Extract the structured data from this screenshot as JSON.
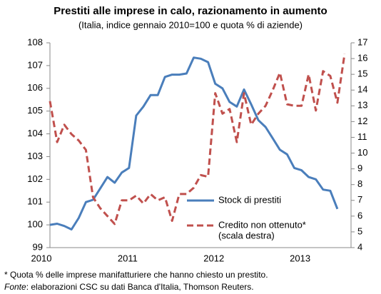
{
  "chart_data": {
    "type": "line",
    "title": "Prestiti alle imprese in calo, razionamento in aumento",
    "subtitle": "(Italia, indice gennaio 2010=100 e quota % di aziende)",
    "categories": [
      "2010",
      null,
      null,
      null,
      null,
      null,
      null,
      null,
      null,
      null,
      null,
      null,
      "2011",
      null,
      null,
      null,
      null,
      null,
      null,
      null,
      null,
      null,
      null,
      null,
      "2012",
      null,
      null,
      null,
      null,
      null,
      null,
      null,
      null,
      null,
      null,
      null,
      "2013",
      null,
      null,
      null,
      null,
      null
    ],
    "series": [
      {
        "name": "Stock di prestiti",
        "color": "#4a7ebb",
        "dash": false,
        "values": [
          100.0,
          100.05,
          99.95,
          99.8,
          100.3,
          101.0,
          101.1,
          101.6,
          102.1,
          101.85,
          102.3,
          102.5,
          104.8,
          105.2,
          105.7,
          105.7,
          106.5,
          106.6,
          106.6,
          106.65,
          107.35,
          107.3,
          107.15,
          106.2,
          106.0,
          105.4,
          105.2,
          105.95,
          105.3,
          104.6,
          104.3,
          103.8,
          103.3,
          103.1,
          102.5,
          102.4,
          102.1,
          102.0,
          101.55,
          101.5,
          100.7,
          null
        ]
      },
      {
        "name": "Credito non ottenuto*",
        "color": "#c0504d",
        "dash": true,
        "axis": "y2",
        "values": [
          13.3,
          10.7,
          11.8,
          11.2,
          10.8,
          10.2,
          7.2,
          6.5,
          6.0,
          5.5,
          7.0,
          7.0,
          7.3,
          6.8,
          7.4,
          7.0,
          7.2,
          5.7,
          7.4,
          7.4,
          7.8,
          8.6,
          8.5,
          13.8,
          12.5,
          12.8,
          10.7,
          13.8,
          11.8,
          12.5,
          13.0,
          14.0,
          15.1,
          13.1,
          13.0,
          13.0,
          15.0,
          12.7,
          15.2,
          14.9,
          13.2,
          16.3
        ]
      }
    ],
    "legend_note": "(scala destra)",
    "ylim": [
      99,
      108
    ],
    "yticks": [
      99,
      100,
      101,
      102,
      103,
      104,
      105,
      106,
      107,
      108
    ],
    "y2lim": [
      4,
      17
    ],
    "y2ticks": [
      4,
      5,
      6,
      7,
      8,
      9,
      10,
      11,
      12,
      13,
      14,
      15,
      16,
      17
    ],
    "notes": [
      "* Quota % delle imprese manifatturiere  che hanno  chiesto un prestito."
    ],
    "source": {
      "label": "Fonte",
      "text": ": elaborazioni CSC su dati Banca d'Italia, Thomson Reuters."
    }
  }
}
